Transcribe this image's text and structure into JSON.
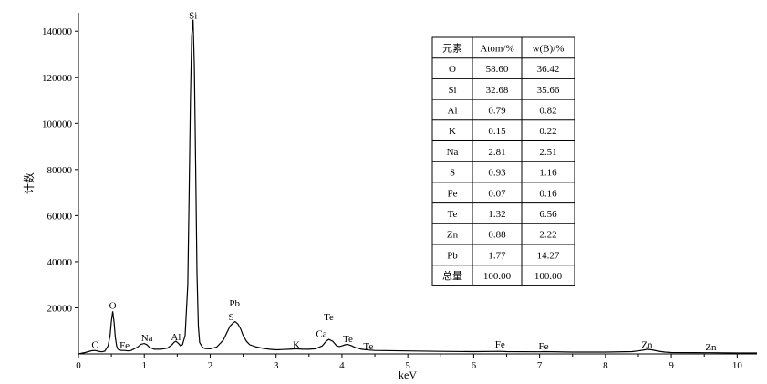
{
  "chart_data": {
    "type": "line",
    "xlabel": "keV",
    "ylabel": "计数",
    "xlim": [
      0,
      10.3
    ],
    "ylim": [
      0,
      148000
    ],
    "x_ticks": [
      0,
      1,
      2,
      3,
      4,
      5,
      6,
      7,
      8,
      9,
      10
    ],
    "y_ticks": [
      20000,
      40000,
      60000,
      80000,
      100000,
      120000,
      140000
    ],
    "grid": false,
    "peak_labels": [
      {
        "text": "C",
        "x": 0.25,
        "y": 2500
      },
      {
        "text": "O",
        "x": 0.52,
        "y": 19500
      },
      {
        "text": "Fe",
        "x": 0.7,
        "y": 2300
      },
      {
        "text": "Na",
        "x": 1.04,
        "y": 5600
      },
      {
        "text": "Al",
        "x": 1.48,
        "y": 6000
      },
      {
        "text": "Si",
        "x": 1.74,
        "y": 145500
      },
      {
        "text": "Pb",
        "x": 2.37,
        "y": 20500
      },
      {
        "text": "S",
        "x": 2.32,
        "y": 14700
      },
      {
        "text": "K",
        "x": 3.31,
        "y": 2600
      },
      {
        "text": "Te",
        "x": 3.8,
        "y": 14700
      },
      {
        "text": "Ca",
        "x": 3.69,
        "y": 7300
      },
      {
        "text": "Te",
        "x": 4.09,
        "y": 5100
      },
      {
        "text": "Te",
        "x": 4.4,
        "y": 1900
      },
      {
        "text": "Fe",
        "x": 6.4,
        "y": 2700
      },
      {
        "text": "Fe",
        "x": 7.06,
        "y": 2000
      },
      {
        "text": "Zn",
        "x": 8.63,
        "y": 2600
      },
      {
        "text": "Zn",
        "x": 9.6,
        "y": 1500
      }
    ],
    "series": [
      {
        "x": [
          0.0,
          0.1,
          0.2,
          0.25,
          0.3,
          0.35,
          0.4,
          0.45,
          0.48,
          0.5,
          0.52,
          0.54,
          0.56,
          0.58,
          0.6,
          0.65,
          0.7,
          0.75,
          0.8,
          0.9,
          0.95,
          1.0,
          1.04,
          1.08,
          1.15,
          1.25,
          1.35,
          1.42,
          1.45,
          1.48,
          1.52,
          1.55,
          1.58,
          1.62,
          1.66,
          1.68,
          1.7,
          1.72,
          1.74,
          1.76,
          1.78,
          1.8,
          1.82,
          1.84,
          1.88,
          1.92,
          2.0,
          2.1,
          2.2,
          2.25,
          2.3,
          2.35,
          2.38,
          2.42,
          2.46,
          2.5,
          2.55,
          2.6,
          2.7,
          2.8,
          2.9,
          3.0,
          3.1,
          3.2,
          3.31,
          3.4,
          3.5,
          3.6,
          3.7,
          3.76,
          3.8,
          3.86,
          3.92,
          3.96,
          4.0,
          4.05,
          4.09,
          4.15,
          4.2,
          4.3,
          4.4,
          4.5,
          5.0,
          5.5,
          6.0,
          6.4,
          6.5,
          7.0,
          7.06,
          7.5,
          8.0,
          8.4,
          8.5,
          8.6,
          8.63,
          8.7,
          8.8,
          8.9,
          9.0,
          9.5,
          9.6,
          10.0,
          10.3
        ],
        "y": [
          0,
          600,
          1400,
          1500,
          1200,
          900,
          1200,
          3500,
          8000,
          14000,
          18500,
          14000,
          7000,
          3500,
          2000,
          1500,
          1500,
          1300,
          1500,
          3000,
          4200,
          4500,
          4000,
          2800,
          2000,
          2000,
          2500,
          4000,
          5000,
          5500,
          4500,
          3500,
          4000,
          8000,
          30000,
          70000,
          110000,
          138000,
          145000,
          125000,
          80000,
          35000,
          12000,
          5000,
          3000,
          2300,
          2200,
          3000,
          6000,
          9000,
          12000,
          13500,
          14000,
          13000,
          11000,
          8000,
          5500,
          4000,
          3000,
          2400,
          2000,
          1800,
          1900,
          2000,
          2200,
          2000,
          2000,
          2200,
          3500,
          5500,
          6300,
          5500,
          3500,
          3200,
          3500,
          4000,
          4100,
          3500,
          2800,
          2000,
          1700,
          1500,
          1300,
          1100,
          1000,
          1100,
          1000,
          900,
          1000,
          800,
          800,
          1000,
          1300,
          1800,
          2000,
          1800,
          1200,
          800,
          600,
          500,
          500,
          400,
          400
        ]
      }
    ]
  },
  "composition_table": {
    "header": [
      "元素",
      "Atom/%",
      "w(B)/%"
    ],
    "rows": [
      [
        "O",
        "58.60",
        "36.42"
      ],
      [
        "Si",
        "32.68",
        "35.66"
      ],
      [
        "Al",
        "0.79",
        "0.82"
      ],
      [
        "K",
        "0.15",
        "0.22"
      ],
      [
        "Na",
        "2.81",
        "2.51"
      ],
      [
        "S",
        "0.93",
        "1.16"
      ],
      [
        "Fe",
        "0.07",
        "0.16"
      ],
      [
        "Te",
        "1.32",
        "6.56"
      ],
      [
        "Zn",
        "0.88",
        "2.22"
      ],
      [
        "Pb",
        "1.77",
        "14.27"
      ],
      [
        "总量",
        "100.00",
        "100.00"
      ]
    ]
  }
}
